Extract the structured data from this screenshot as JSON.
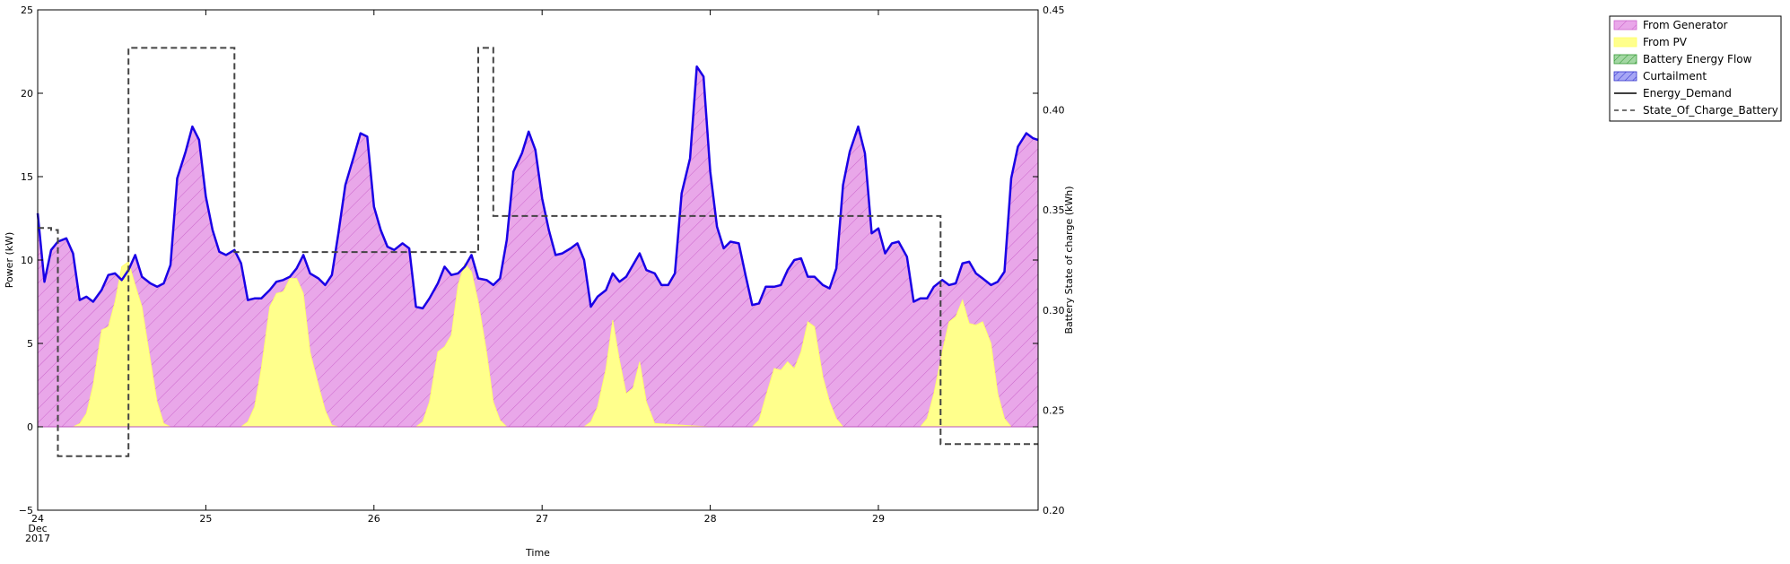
{
  "chart_data": {
    "type": "area",
    "xlabel": "Time",
    "ylabel": "Power (kW)",
    "y2label": "Battery State of charge (kWh)",
    "ylim": [
      -5,
      25
    ],
    "y2lim": [
      0.2,
      0.45
    ],
    "xlim": [
      24.0,
      29.95
    ],
    "yticks": [
      -5,
      0,
      5,
      10,
      15,
      20,
      25
    ],
    "yticklabels": [
      "−5",
      "0",
      "5",
      "10",
      "15",
      "20",
      "25"
    ],
    "y2ticks": [
      0.2,
      0.25,
      0.3,
      0.35,
      0.4,
      0.45
    ],
    "y2ticklabels": [
      "0.20",
      "0.25",
      "0.30",
      "0.35",
      "0.40",
      "0.45"
    ],
    "xticks": [
      {
        "value": 24,
        "lines": [
          "24",
          "Dec",
          "2017"
        ]
      },
      {
        "value": 25,
        "lines": [
          "25"
        ]
      },
      {
        "value": 26,
        "lines": [
          "26"
        ]
      },
      {
        "value": 27,
        "lines": [
          "27"
        ]
      },
      {
        "value": 28,
        "lines": [
          "28"
        ]
      },
      {
        "value": 29,
        "lines": [
          "29"
        ]
      }
    ],
    "grid": false,
    "legend_position": "top-right, outside plot",
    "legend": [
      {
        "label": "From Generator",
        "kind": "patch",
        "color": "#e9a7e9",
        "hatch": true,
        "edge": "#cc66cc"
      },
      {
        "label": "From PV",
        "kind": "patch",
        "color": "#ffff8c",
        "hatch": false,
        "edge": "#ffff66"
      },
      {
        "label": "Battery Energy Flow",
        "kind": "patch",
        "color": "#a3d7a3",
        "hatch": true,
        "edge": "#339933"
      },
      {
        "label": "Curtailment",
        "kind": "patch",
        "color": "#a6a6f5",
        "hatch": true,
        "edge": "#3333cc"
      },
      {
        "label": "Energy_Demand",
        "kind": "line",
        "color": "#000000",
        "dash": false
      },
      {
        "label": "State_Of_Charge_Battery",
        "kind": "line",
        "color": "#444444",
        "dash": true
      }
    ],
    "series": [
      {
        "name": "Energy_Demand",
        "color": "#1a00e6",
        "x": [
          24.0,
          24.04,
          24.08,
          24.12,
          24.17,
          24.21,
          24.25,
          24.29,
          24.33,
          24.38,
          24.42,
          24.46,
          24.5,
          24.54,
          24.58,
          24.62,
          24.67,
          24.71,
          24.75,
          24.79,
          24.83,
          24.88,
          24.92,
          24.96,
          25.0,
          25.04,
          25.08,
          25.12,
          25.17,
          25.21,
          25.25,
          25.29,
          25.33,
          25.38,
          25.42,
          25.46,
          25.5,
          25.54,
          25.58,
          25.62,
          25.67,
          25.71,
          25.75,
          25.79,
          25.83,
          25.88,
          25.92,
          25.96,
          26.0,
          26.04,
          26.08,
          26.12,
          26.17,
          26.21,
          26.25,
          26.29,
          26.33,
          26.38,
          26.42,
          26.46,
          26.5,
          26.54,
          26.58,
          26.62,
          26.67,
          26.71,
          26.75,
          26.79,
          26.83,
          26.88,
          26.92,
          26.96,
          27.0,
          27.04,
          27.08,
          27.12,
          27.17,
          27.21,
          27.25,
          27.29,
          27.33,
          27.38,
          27.42,
          27.46,
          27.5,
          27.54,
          27.58,
          27.62,
          27.67,
          27.71,
          27.75,
          27.79,
          27.83,
          27.88,
          27.92,
          27.96,
          28.0,
          28.04,
          28.08,
          28.12,
          28.17,
          28.21,
          28.25,
          28.29,
          28.33,
          28.38,
          28.42,
          28.46,
          28.5,
          28.54,
          28.58,
          28.62,
          28.67,
          28.71,
          28.75,
          28.79,
          28.83,
          28.88,
          28.92,
          28.96,
          29.0,
          29.04,
          29.08,
          29.12,
          29.17,
          29.21,
          29.25,
          29.29,
          29.33,
          29.38,
          29.42,
          29.46,
          29.5,
          29.54,
          29.58,
          29.62,
          29.67,
          29.71,
          29.75,
          29.79,
          29.83,
          29.88,
          29.92,
          29.95
        ],
        "values": [
          12.8,
          8.7,
          10.6,
          11.1,
          11.3,
          10.4,
          7.6,
          7.8,
          7.5,
          8.2,
          9.1,
          9.2,
          8.8,
          9.4,
          10.3,
          9.0,
          8.6,
          8.4,
          8.6,
          9.7,
          14.9,
          16.5,
          18.0,
          17.2,
          13.8,
          11.8,
          10.5,
          10.3,
          10.6,
          9.8,
          7.6,
          7.7,
          7.7,
          8.2,
          8.7,
          8.8,
          9.0,
          9.5,
          10.3,
          9.2,
          8.9,
          8.5,
          9.1,
          11.7,
          14.5,
          16.2,
          17.6,
          17.4,
          13.2,
          11.8,
          10.8,
          10.6,
          11.0,
          10.7,
          7.2,
          7.1,
          7.7,
          8.6,
          9.6,
          9.1,
          9.2,
          9.6,
          10.3,
          8.9,
          8.8,
          8.5,
          8.9,
          11.2,
          15.3,
          16.4,
          17.7,
          16.6,
          13.7,
          11.8,
          10.3,
          10.4,
          10.7,
          11.0,
          10.0,
          7.2,
          7.8,
          8.2,
          9.2,
          8.7,
          9.0,
          9.7,
          10.4,
          9.4,
          9.2,
          8.5,
          8.5,
          9.2,
          14.0,
          16.1,
          21.6,
          21.0,
          15.3,
          12.0,
          10.7,
          11.1,
          11.0,
          9.1,
          7.3,
          7.4,
          8.4,
          8.4,
          8.5,
          9.4,
          10.0,
          10.1,
          9.0,
          9.0,
          8.5,
          8.3,
          9.5,
          14.5,
          16.5,
          18.0,
          16.4,
          11.6,
          11.9,
          10.4,
          11.0,
          11.1,
          10.2,
          7.5,
          7.7,
          7.7,
          8.4,
          8.8,
          8.5,
          8.6,
          9.8,
          9.9,
          9.2,
          8.9,
          8.5,
          8.7,
          9.3,
          14.9,
          16.8,
          17.6,
          17.3,
          17.2
        ]
      },
      {
        "name": "From PV",
        "color": "#ffff8c",
        "x": [
          24.0,
          24.21,
          24.25,
          24.29,
          24.33,
          24.38,
          24.42,
          24.46,
          24.5,
          24.54,
          24.58,
          24.62,
          24.67,
          24.71,
          24.75,
          24.79,
          25.0,
          25.21,
          25.25,
          25.29,
          25.33,
          25.38,
          25.42,
          25.46,
          25.5,
          25.54,
          25.58,
          25.62,
          25.67,
          25.71,
          25.75,
          25.79,
          26.0,
          26.25,
          26.29,
          26.33,
          26.38,
          26.42,
          26.46,
          26.5,
          26.54,
          26.58,
          26.62,
          26.67,
          26.71,
          26.75,
          26.79,
          27.0,
          27.25,
          27.29,
          27.33,
          27.38,
          27.42,
          27.46,
          27.5,
          27.54,
          27.58,
          27.62,
          27.67,
          28.0,
          28.25,
          28.29,
          28.33,
          28.38,
          28.42,
          28.46,
          28.5,
          28.54,
          28.58,
          28.62,
          28.67,
          28.71,
          28.75,
          28.79,
          29.0,
          29.25,
          29.29,
          29.33,
          29.38,
          29.42,
          29.46,
          29.5,
          29.54,
          29.58,
          29.62,
          29.67,
          29.71,
          29.75,
          29.79,
          29.95
        ],
        "values": [
          0,
          0,
          0.2,
          0.8,
          2.5,
          5.8,
          6.0,
          7.5,
          9.6,
          9.9,
          8.5,
          7.2,
          4.0,
          1.5,
          0.2,
          0,
          0,
          0,
          0.3,
          1.2,
          3.5,
          7.2,
          8.0,
          8.1,
          8.9,
          8.9,
          8.0,
          4.5,
          2.5,
          1.0,
          0.1,
          0,
          0,
          0,
          0.3,
          1.5,
          4.5,
          4.8,
          5.5,
          8.5,
          9.8,
          9.3,
          7.5,
          4.5,
          1.5,
          0.4,
          0,
          0,
          0,
          0.3,
          1.2,
          3.5,
          6.4,
          4.0,
          2.0,
          2.3,
          3.9,
          1.5,
          0.2,
          0,
          0,
          0.4,
          1.8,
          3.5,
          3.4,
          3.9,
          3.5,
          4.5,
          6.3,
          6.0,
          3.0,
          1.5,
          0.5,
          0,
          0,
          0,
          0.5,
          2.0,
          4.5,
          6.3,
          6.6,
          7.6,
          6.2,
          6.1,
          6.3,
          5.0,
          2.0,
          0.5,
          0,
          0
        ]
      },
      {
        "name": "State_Of_Charge_Battery",
        "color": "#444444",
        "x": [
          24.0,
          24.08,
          24.08,
          24.12,
          24.12,
          24.44,
          24.44,
          24.54,
          24.54,
          25.12,
          25.12,
          25.17,
          25.17,
          26.58,
          26.58,
          26.62,
          26.62,
          26.67,
          26.67,
          26.71,
          26.71,
          29.33,
          29.33,
          29.37,
          29.37,
          29.95
        ],
        "values": [
          0.341,
          0.341,
          0.34,
          0.34,
          0.227,
          0.227,
          0.227,
          0.227,
          0.431,
          0.431,
          0.431,
          0.431,
          0.329,
          0.329,
          0.329,
          0.329,
          0.431,
          0.431,
          0.431,
          0.431,
          0.347,
          0.347,
          0.347,
          0.347,
          0.233,
          0.233
        ]
      }
    ]
  }
}
